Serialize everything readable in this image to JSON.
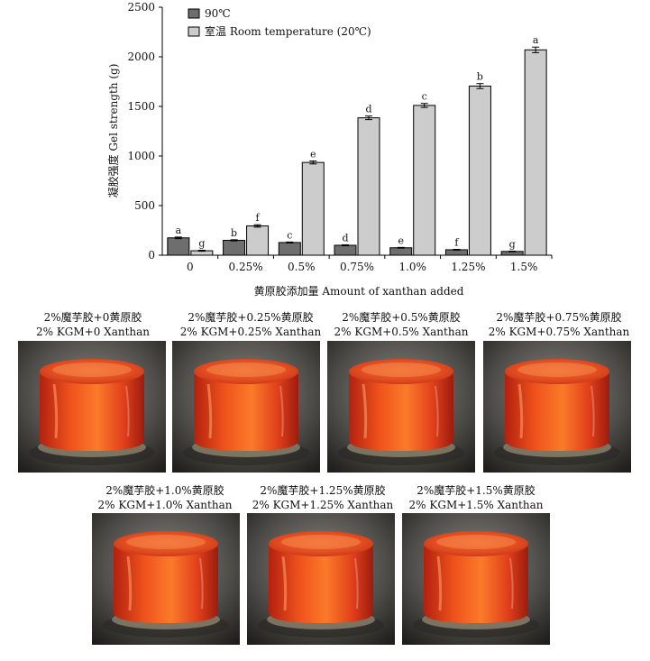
{
  "chart_data": {
    "type": "bar",
    "ylabel": "凝胶强度 Gel strength (g)",
    "xlabel": "黄原胶添加量 Amount of xanthan added",
    "ylim": [
      0,
      2500
    ],
    "yticks": [
      "0",
      "500",
      "1000",
      "1500",
      "2000",
      "2500"
    ],
    "categories": [
      "0",
      "0.25%",
      "0.5%",
      "0.75%",
      "1.0%",
      "1.25%",
      "1.5%"
    ],
    "legend_position": "top-left",
    "grid": false,
    "series": [
      {
        "name": "90℃",
        "color": "#6e6e6e",
        "values": [
          175,
          150,
          128,
          100,
          75,
          55,
          38
        ],
        "errors": [
          8,
          6,
          5,
          5,
          4,
          4,
          3
        ],
        "letters": [
          "a",
          "b",
          "c",
          "d",
          "e",
          "f",
          "g"
        ]
      },
      {
        "name": "室温 Room temperature (20℃)",
        "color": "#cccccc",
        "values": [
          45,
          295,
          935,
          1385,
          1510,
          1705,
          2070
        ],
        "errors": [
          5,
          12,
          15,
          18,
          20,
          25,
          28
        ],
        "letters": [
          "g",
          "f",
          "e",
          "d",
          "c",
          "b",
          "a"
        ]
      }
    ]
  },
  "samples": [
    {
      "cn": "2%魔芋胶+0黄原胶",
      "en": "2% KGM+0 Xanthan",
      "photo": "gel-photo"
    },
    {
      "cn": "2%魔芋胶+0.25%黄原胶",
      "en": "2% KGM+0.25% Xanthan",
      "photo": "gel-photo"
    },
    {
      "cn": "2%魔芋胶+0.5%黄原胶",
      "en": "2% KGM+0.5% Xanthan",
      "photo": "gel-photo"
    },
    {
      "cn": "2%魔芋胶+0.75%黄原胶",
      "en": "2% KGM+0.75% Xanthan",
      "photo": "gel-photo"
    },
    {
      "cn": "2%魔芋胶+1.0%黄原胶",
      "en": "2% KGM+1.0% Xanthan",
      "photo": "gel-photo"
    },
    {
      "cn": "2%魔芋胶+1.25%黄原胶",
      "en": "2% KGM+1.25% Xanthan",
      "photo": "gel-photo"
    },
    {
      "cn": "2%魔芋胶+1.5%黄原胶",
      "en": "2% KGM+1.5% Xanthan",
      "photo": "gel-photo"
    }
  ]
}
